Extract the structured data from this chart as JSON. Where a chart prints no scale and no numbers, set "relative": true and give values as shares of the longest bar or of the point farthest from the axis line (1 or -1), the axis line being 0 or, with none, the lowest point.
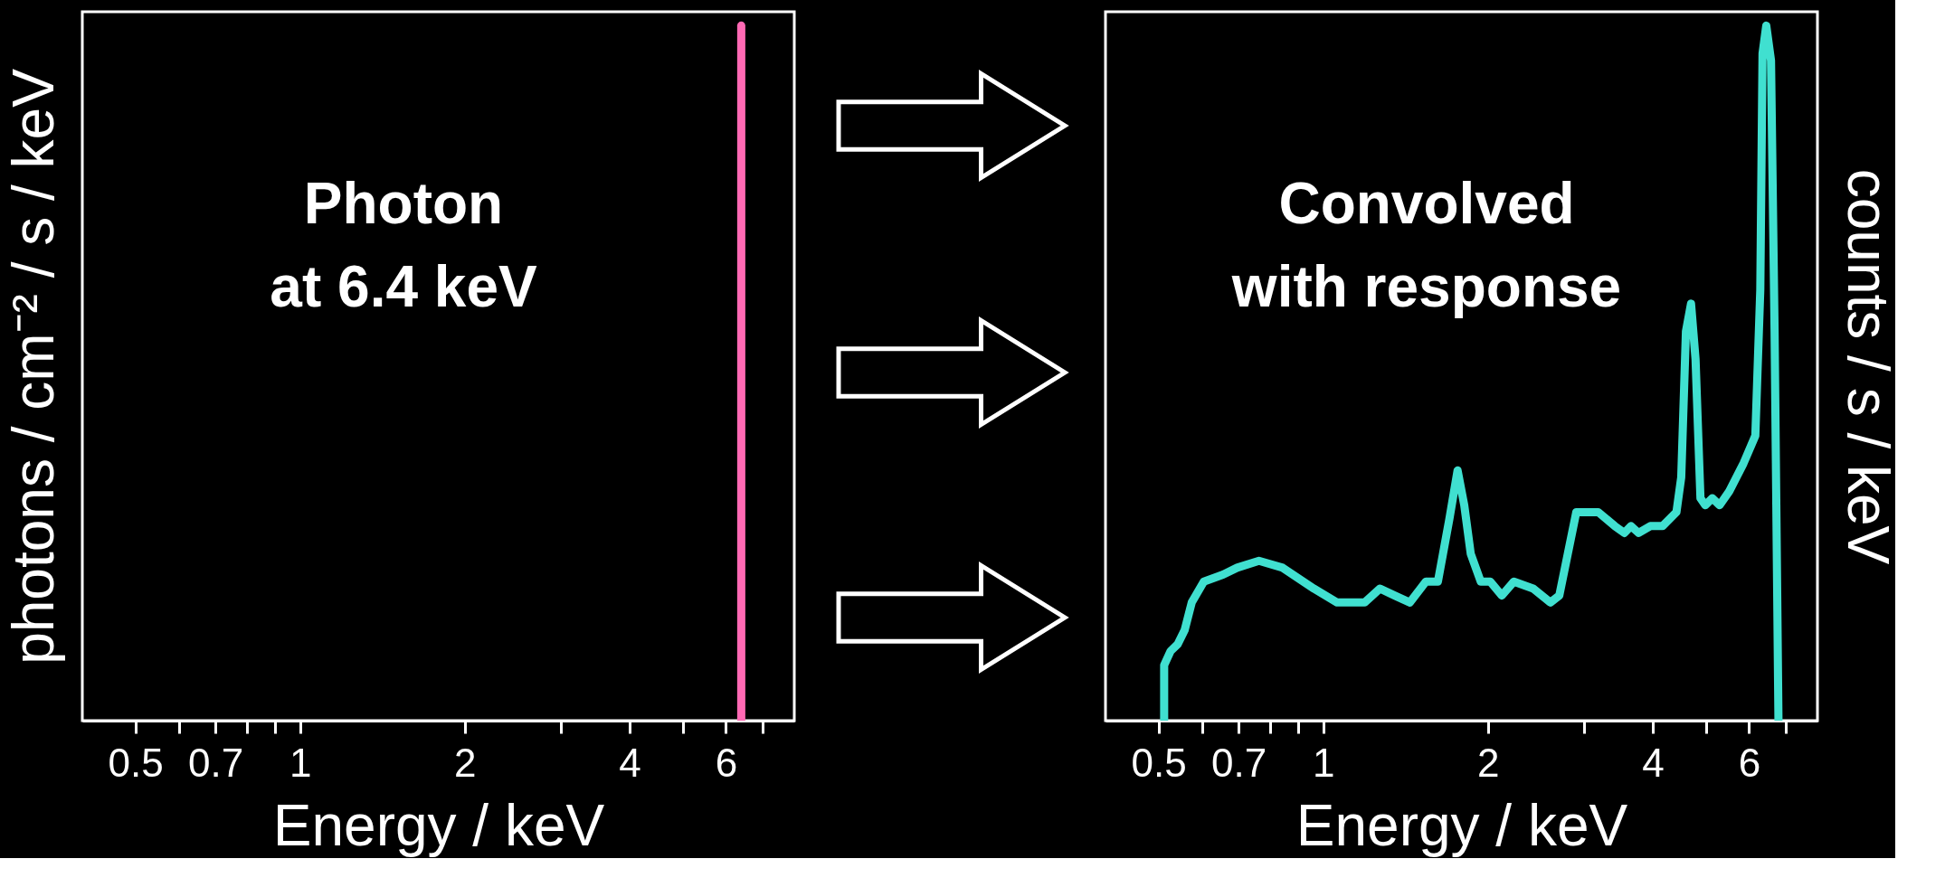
{
  "chart_data": [
    {
      "type": "line",
      "title": "Photon\nat 6.4 keV",
      "xlabel": "Energy / keV",
      "ylabel": "photons / cm⁻² / s / keV",
      "relative": true,
      "log": "x",
      "grid": false,
      "tick_labels": "x",
      "line_style": "solid",
      "marker": "none",
      "xlim": [
        0.4,
        8
      ],
      "xticks": [
        0.5,
        {
          "value": 0.6,
          "label": null
        },
        0.7,
        {
          "value": 0.8,
          "label": null
        },
        {
          "value": 0.9,
          "label": null
        },
        1,
        2,
        {
          "value": 3,
          "label": null
        },
        4,
        {
          "value": 5,
          "label": null
        },
        6,
        {
          "value": 7,
          "label": null
        }
      ],
      "series": [
        {
          "color": "#ff69b4",
          "x": [
            6.4,
            6.4
          ],
          "values": [
            0,
            1
          ]
        }
      ]
    },
    {
      "type": "line",
      "title": "Convolved\nwith response",
      "xlabel": "Energy / keV",
      "y2label": "counts / s / keV",
      "relative": true,
      "log": "x",
      "grid": false,
      "tick_labels": "x",
      "line_style": "solid",
      "marker": "none",
      "xlim": [
        0.4,
        8
      ],
      "xticks": [
        0.5,
        {
          "value": 0.6,
          "label": null
        },
        0.7,
        {
          "value": 0.8,
          "label": null
        },
        {
          "value": 0.9,
          "label": null
        },
        1,
        2,
        {
          "value": 3,
          "label": null
        },
        4,
        {
          "value": 5,
          "label": null
        },
        6,
        {
          "value": 7,
          "label": null
        }
      ],
      "series": [
        {
          "color": "#40e0d0",
          "axis": "y2",
          "x": [
            0.512,
            0.512,
            0.526,
            0.542,
            0.558,
            0.575,
            0.605,
            0.656,
            0.696,
            0.763,
            0.843,
            0.961,
            1.06,
            1.19,
            1.27,
            1.35,
            1.44,
            1.54,
            1.62,
            1.7,
            1.76,
            1.81,
            1.86,
            1.94,
            2.02,
            2.12,
            2.23,
            2.42,
            2.6,
            2.7,
            2.9,
            3.18,
            3.41,
            3.55,
            3.65,
            3.77,
            3.96,
            4.17,
            4.42,
            4.51,
            4.6,
            4.7,
            4.79,
            4.89,
            4.99,
            5.14,
            5.3,
            5.52,
            5.86,
            6.16,
            6.29,
            6.35,
            6.45,
            6.58,
            6.68,
            6.79
          ],
          "values": [
            0,
            0.08,
            0.1,
            0.11,
            0.13,
            0.17,
            0.2,
            0.21,
            0.22,
            0.23,
            0.22,
            0.19,
            0.17,
            0.17,
            0.19,
            0.18,
            0.17,
            0.2,
            0.2,
            0.29,
            0.36,
            0.31,
            0.24,
            0.2,
            0.2,
            0.18,
            0.2,
            0.19,
            0.17,
            0.18,
            0.3,
            0.3,
            0.28,
            0.27,
            0.28,
            0.27,
            0.28,
            0.28,
            0.3,
            0.35,
            0.56,
            0.6,
            0.52,
            0.32,
            0.31,
            0.32,
            0.31,
            0.33,
            0.37,
            0.41,
            0.62,
            0.96,
            1,
            0.95,
            0.56,
            0
          ]
        }
      ]
    }
  ]
}
